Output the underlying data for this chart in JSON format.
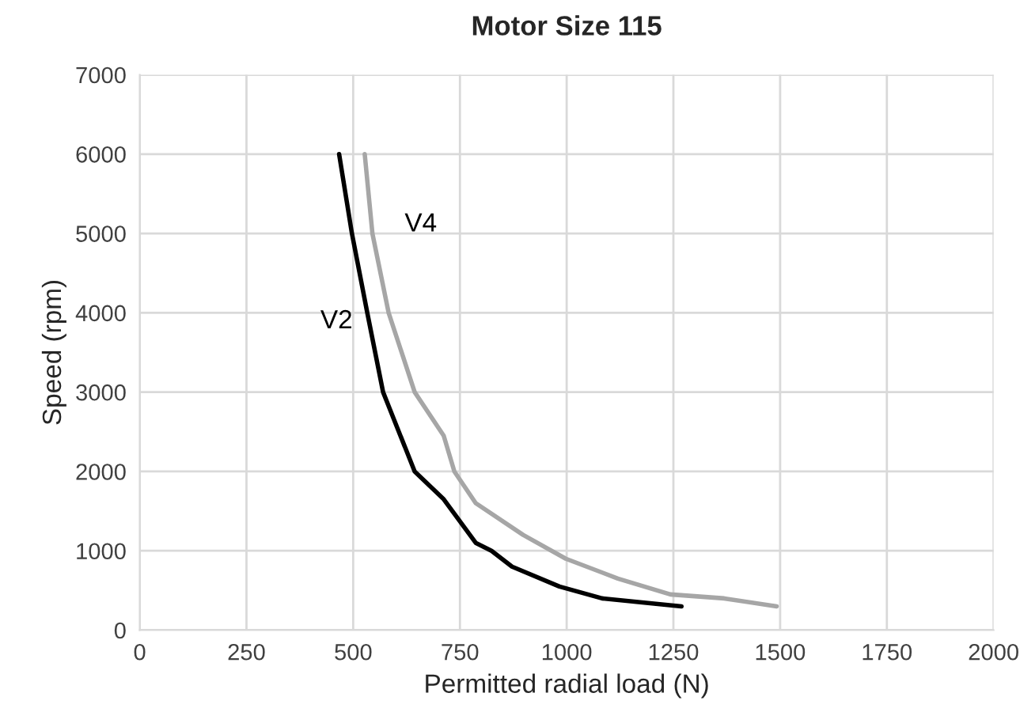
{
  "chart_data": {
    "type": "line",
    "title": "Motor Size 115",
    "xlabel": "Permitted radial load (N)",
    "ylabel": "Speed (rpm)",
    "xlim": [
      0,
      2000
    ],
    "xticks": [
      0,
      250,
      500,
      750,
      1000,
      1250,
      1500,
      1750,
      2000
    ],
    "ylim": [
      0,
      7000
    ],
    "yticks": [
      0,
      1000,
      2000,
      3000,
      4000,
      5000,
      6000,
      7000
    ],
    "grid": true,
    "marker": "none",
    "line_style": "solid",
    "series": [
      {
        "name": "V2",
        "color": "#000000",
        "x": [
          467,
          497,
          533,
          570,
          644,
          712,
          787,
          824,
          872,
          983,
          1083,
          1269
        ],
        "values": [
          6000,
          5000,
          4000,
          3000,
          2000,
          1650,
          1100,
          1000,
          800,
          550,
          400,
          300
        ]
      },
      {
        "name": "V4",
        "color": "#a6a6a6",
        "x": [
          527,
          545,
          583,
          644,
          712,
          737,
          787,
          898,
          998,
          1120,
          1243,
          1369,
          1492
        ],
        "values": [
          6000,
          5000,
          4000,
          3000,
          2450,
          2000,
          1600,
          1200,
          900,
          650,
          450,
          400,
          300
        ]
      }
    ]
  }
}
